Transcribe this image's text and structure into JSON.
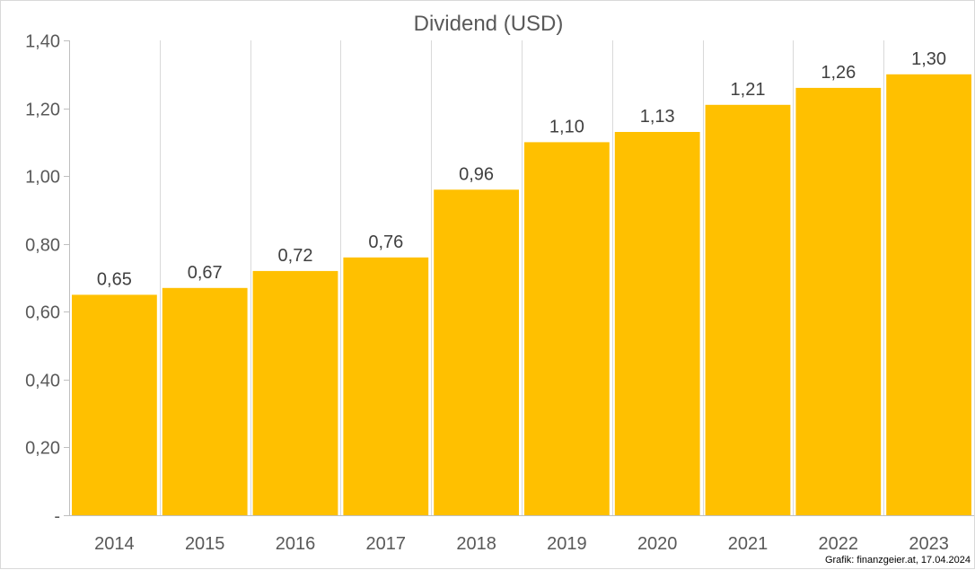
{
  "chart_data": {
    "type": "bar",
    "title": "Dividend (USD)",
    "categories": [
      "2014",
      "2015",
      "2016",
      "2017",
      "2018",
      "2019",
      "2020",
      "2021",
      "2022",
      "2023"
    ],
    "values": [
      0.65,
      0.67,
      0.72,
      0.76,
      0.96,
      1.1,
      1.13,
      1.21,
      1.26,
      1.3
    ],
    "value_labels": [
      "0,65",
      "0,67",
      "0,72",
      "0,76",
      "0,96",
      "1,10",
      "1,13",
      "1,21",
      "1,26",
      "1,30"
    ],
    "ylim": [
      0,
      1.4
    ],
    "yticks": [
      0,
      0.2,
      0.4,
      0.6,
      0.8,
      1.0,
      1.2,
      1.4
    ],
    "ytick_labels": [
      "-",
      "0,20",
      "0,40",
      "0,60",
      "0,80",
      "1,00",
      "1,20",
      "1,40"
    ],
    "grid": "vertical",
    "bar_color": "#FFC000",
    "xlabel": "",
    "ylabel": ""
  },
  "credit": "Grafik: finanzgeier.at, 17.04.2024"
}
